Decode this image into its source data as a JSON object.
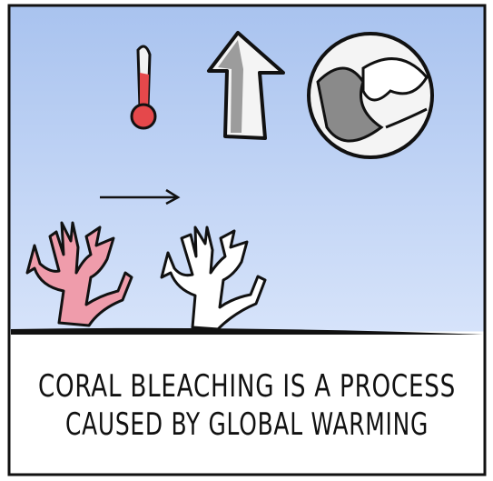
{
  "caption": {
    "line1": "CORAL BLEACHING IS A PROCESS",
    "line2": "CAUSED BY GLOBAL WARMING"
  }
}
